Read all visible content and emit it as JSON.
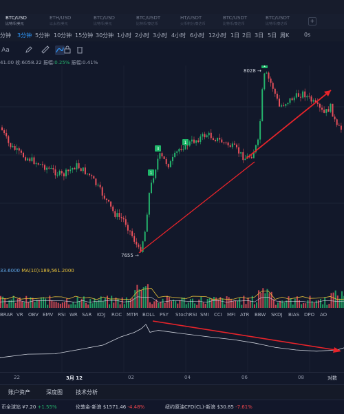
{
  "symbol_tabs": [
    {
      "name": "BTC/USD",
      "sub": "比特币/美元",
      "active": true
    },
    {
      "name": "ETH/USD",
      "sub": "以太坊/美元",
      "active": false
    },
    {
      "name": "BTC/USD",
      "sub": "比特币/美元",
      "active": false
    },
    {
      "name": "BTC/USDT",
      "sub": "比特币/泰达币",
      "active": false
    },
    {
      "name": "HT/USDT",
      "sub": "火币积分/泰达币",
      "active": false
    },
    {
      "name": "BTC/USDT",
      "sub": "比特币/泰达币",
      "active": false
    },
    {
      "name": "BTC/USDT",
      "sub": "比特币/泰达币",
      "active": false
    }
  ],
  "add_tab": "+",
  "timeframes": [
    "分钟",
    "3分钟",
    "5分钟",
    "10分钟",
    "15分钟",
    "30分钟",
    "1小时",
    "2小时",
    "3小时",
    "4小时",
    "6小时",
    "12小时",
    "1日",
    "2日",
    "3日",
    "5日",
    "周K",
    "0s"
  ],
  "active_timeframe": "3分钟",
  "drawing_tools": [
    "Aa",
    "pen-icon",
    "ruler-icon",
    "drawing-mode-icon",
    "lock-icon",
    "layers-icon",
    "trash-icon"
  ],
  "info_line": {
    "open": "41.00",
    "close": "收:6058.22",
    "change_label": "振幅:",
    "change_value": "0.25%",
    "amp": "振幅:0.41%"
  },
  "price_annotations": {
    "high": "8028",
    "low": "7655"
  },
  "markers": [
    "1",
    "1",
    "3",
    "1"
  ],
  "volume_label": {
    "v1": "33.6000",
    "v2": "MA(10):189,561.2000"
  },
  "indicators": [
    "BRAR",
    "VR",
    "OBV",
    "EMV",
    "RSI",
    "WR",
    "SAR",
    "KDJ",
    "ROC",
    "MTM",
    "BOLL",
    "PSY",
    "StochRSI",
    "SMI",
    "CCI",
    "MFI",
    "ATR",
    "BBW",
    "SKDJ",
    "BIAS",
    "DPO",
    "AO"
  ],
  "time_axis": [
    "22",
    "3月 12",
    "02",
    "04",
    "06",
    "08",
    "对数"
  ],
  "bottom_tabs": [
    "账户资产",
    "深度图",
    "技术分析"
  ],
  "ticker": [
    {
      "label": "币全球站",
      "price": "¥7.20",
      "change": "+1.55%",
      "dir": "up"
    },
    {
      "label": "伦敦金-新浪",
      "price": "$1571.46",
      "change": "-4.48%",
      "dir": "dn"
    },
    {
      "label": "纽约原油CFD(CL)-新浪",
      "price": "$30.85",
      "change": "-7.61%",
      "dir": "dn"
    }
  ],
  "colors": {
    "up": "#25b26c",
    "down": "#e8505b",
    "trend": "#e8242a",
    "accent": "#2f9bff",
    "bg": "#12182a"
  },
  "chart_data": {
    "type": "candlestick",
    "annotations": [
      "8028 (high)",
      "7655 (low)"
    ],
    "price_high": 8028,
    "price_low": 7655
  }
}
